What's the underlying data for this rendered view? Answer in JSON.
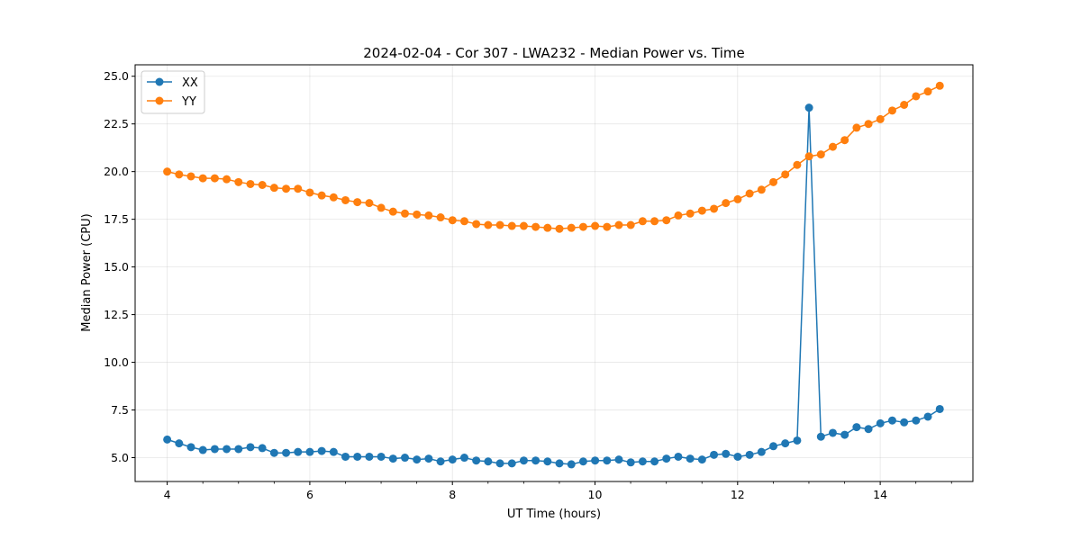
{
  "chart_data": {
    "type": "line",
    "title": "2024-02-04 - Cor 307 - LWA232 - Median Power vs. Time",
    "xlabel": "UT Time (hours)",
    "ylabel": "Median Power (CPU)",
    "xlim": [
      3.55,
      15.3
    ],
    "ylim": [
      3.75,
      25.6
    ],
    "xticks": [
      4,
      6,
      8,
      10,
      12,
      14
    ],
    "xtick_labels": [
      "4",
      "6",
      "8",
      "10",
      "12",
      "14"
    ],
    "xminor_step": 0.5,
    "yticks": [
      5.0,
      7.5,
      10.0,
      12.5,
      15.0,
      17.5,
      20.0,
      22.5,
      25.0
    ],
    "ytick_labels": [
      "5.0",
      "7.5",
      "10.0",
      "12.5",
      "15.0",
      "17.5",
      "20.0",
      "22.5",
      "25.0"
    ],
    "grid": true,
    "legend_position": "upper-left",
    "x_start": 4.0,
    "x_step": 0.1667,
    "series": [
      {
        "name": "XX",
        "color": "#1f77b4",
        "values": [
          5.95,
          5.75,
          5.55,
          5.4,
          5.45,
          5.45,
          5.45,
          5.55,
          5.5,
          5.25,
          5.25,
          5.3,
          5.3,
          5.35,
          5.3,
          5.05,
          5.05,
          5.05,
          5.05,
          4.95,
          5.0,
          4.9,
          4.95,
          4.8,
          4.9,
          5.0,
          4.85,
          4.8,
          4.7,
          4.7,
          4.85,
          4.85,
          4.8,
          4.7,
          4.65,
          4.8,
          4.85,
          4.85,
          4.9,
          4.75,
          4.8,
          4.8,
          4.95,
          5.05,
          4.95,
          4.9,
          5.15,
          5.2,
          5.05,
          5.15,
          5.3,
          5.6,
          5.75,
          5.9,
          23.35,
          6.1,
          6.3,
          6.2,
          6.6,
          6.5,
          6.8,
          6.95,
          6.85,
          6.95,
          7.15,
          7.55
        ]
      },
      {
        "name": "YY",
        "color": "#ff7f0e",
        "values": [
          20.0,
          19.85,
          19.75,
          19.65,
          19.65,
          19.6,
          19.45,
          19.35,
          19.3,
          19.15,
          19.1,
          19.1,
          18.9,
          18.75,
          18.65,
          18.5,
          18.4,
          18.35,
          18.1,
          17.9,
          17.8,
          17.75,
          17.7,
          17.6,
          17.45,
          17.4,
          17.25,
          17.2,
          17.2,
          17.15,
          17.15,
          17.1,
          17.05,
          17.0,
          17.05,
          17.1,
          17.15,
          17.1,
          17.2,
          17.2,
          17.4,
          17.4,
          17.45,
          17.7,
          17.8,
          17.95,
          18.05,
          18.35,
          18.55,
          18.85,
          19.05,
          19.45,
          19.85,
          20.35,
          20.8,
          20.9,
          21.3,
          21.65,
          22.3,
          22.5,
          22.75,
          23.2,
          23.5,
          23.95,
          24.2,
          24.5
        ]
      }
    ]
  }
}
